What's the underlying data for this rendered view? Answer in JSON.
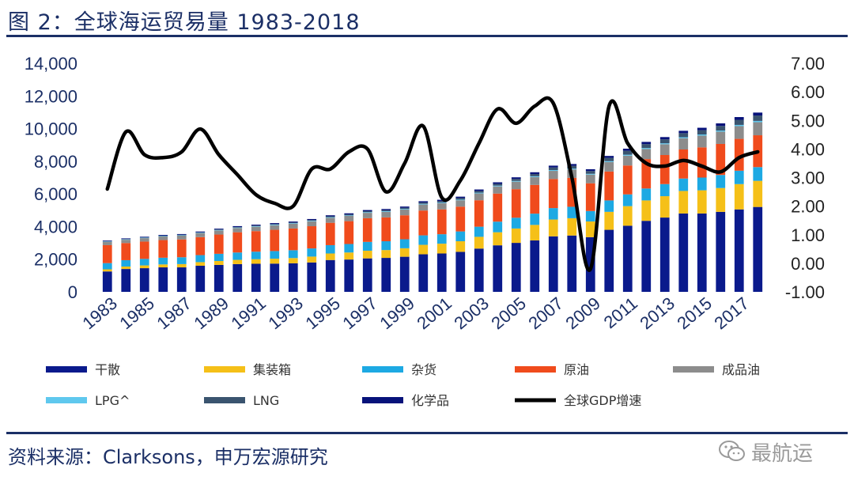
{
  "title": "图 2：全球海运贸易量 1983-2018",
  "source": "资料来源：Clarksons，申万宏源研究",
  "watermark": {
    "icon": "wechat-icon",
    "text": "最航运"
  },
  "chart_data": {
    "type": "bar",
    "stacked": true,
    "years": [
      1983,
      1984,
      1985,
      1986,
      1987,
      1988,
      1989,
      1990,
      1991,
      1992,
      1993,
      1994,
      1995,
      1996,
      1997,
      1998,
      1999,
      2000,
      2001,
      2002,
      2003,
      2004,
      2005,
      2006,
      2007,
      2008,
      2009,
      2010,
      2011,
      2012,
      2013,
      2014,
      2015,
      2016,
      2017,
      2018
    ],
    "x_tick_labels": [
      "1983",
      "1985",
      "1987",
      "1989",
      "1991",
      "1993",
      "1995",
      "1997",
      "1999",
      "2001",
      "2003",
      "2005",
      "2007",
      "2009",
      "2011",
      "2013",
      "2015",
      "2017"
    ],
    "ylim": [
      0,
      14000
    ],
    "y_ticks": [
      "0",
      "2,000",
      "4,000",
      "6,000",
      "8,000",
      "10,000",
      "12,000",
      "14,000"
    ],
    "y2lim": [
      -1,
      7
    ],
    "y2_ticks": [
      "-1.00",
      "0.00",
      "1.00",
      "2.00",
      "3.00",
      "4.00",
      "5.00",
      "6.00",
      "7.00"
    ],
    "series": [
      {
        "name": "干散",
        "color": "#0a1a8c",
        "values": [
          1250,
          1400,
          1450,
          1500,
          1500,
          1600,
          1650,
          1700,
          1720,
          1730,
          1750,
          1800,
          1950,
          1980,
          2050,
          2080,
          2150,
          2300,
          2350,
          2450,
          2650,
          2850,
          3000,
          3150,
          3400,
          3450,
          3350,
          3800,
          4050,
          4350,
          4550,
          4800,
          4800,
          4900,
          5050,
          5200
        ]
      },
      {
        "name": "集装箱",
        "color": "#f5c018",
        "values": [
          130,
          150,
          170,
          180,
          200,
          220,
          240,
          260,
          280,
          300,
          320,
          360,
          400,
          430,
          470,
          480,
          520,
          580,
          600,
          650,
          720,
          800,
          880,
          950,
          1030,
          1060,
          960,
          1100,
          1200,
          1250,
          1310,
          1380,
          1420,
          1460,
          1550,
          1600
        ]
      },
      {
        "name": "杂货",
        "color": "#1da9e3",
        "values": [
          380,
          390,
          400,
          410,
          420,
          430,
          440,
          450,
          460,
          470,
          480,
          500,
          510,
          520,
          540,
          540,
          550,
          580,
          580,
          600,
          620,
          650,
          660,
          690,
          700,
          700,
          640,
          700,
          720,
          730,
          740,
          760,
          780,
          800,
          820,
          840
        ]
      },
      {
        "name": "原油",
        "color": "#f04b1c",
        "values": [
          1100,
          1050,
          1060,
          1080,
          1090,
          1100,
          1180,
          1240,
          1260,
          1300,
          1330,
          1360,
          1370,
          1400,
          1450,
          1460,
          1470,
          1520,
          1520,
          1520,
          1620,
          1720,
          1750,
          1760,
          1780,
          1770,
          1700,
          1770,
          1770,
          1800,
          1780,
          1780,
          1850,
          1900,
          1950,
          1950
        ]
      },
      {
        "name": "成品油",
        "color": "#8c8c8c",
        "values": [
          200,
          200,
          210,
          220,
          230,
          240,
          250,
          260,
          270,
          280,
          290,
          300,
          310,
          320,
          330,
          340,
          350,
          370,
          380,
          390,
          420,
          440,
          460,
          480,
          500,
          520,
          530,
          580,
          600,
          620,
          660,
          690,
          720,
          750,
          780,
          800
        ]
      },
      {
        "name": "LPG^",
        "color": "#5fc8ee",
        "values": [
          25,
          25,
          25,
          30,
          30,
          30,
          30,
          30,
          35,
          35,
          35,
          35,
          35,
          35,
          40,
          40,
          40,
          40,
          40,
          40,
          45,
          45,
          45,
          50,
          50,
          50,
          50,
          55,
          60,
          60,
          60,
          60,
          70,
          70,
          75,
          80
        ]
      },
      {
        "name": "LNG",
        "color": "#3a546f",
        "values": [
          15,
          20,
          20,
          20,
          25,
          25,
          30,
          30,
          35,
          40,
          40,
          45,
          50,
          55,
          60,
          65,
          70,
          80,
          90,
          95,
          105,
          110,
          120,
          140,
          160,
          170,
          170,
          200,
          240,
          240,
          240,
          250,
          260,
          280,
          310,
          330
        ]
      },
      {
        "name": "化学品",
        "color": "#07127a",
        "values": [
          40,
          40,
          40,
          45,
          45,
          50,
          50,
          55,
          55,
          55,
          60,
          60,
          65,
          70,
          70,
          70,
          75,
          80,
          80,
          85,
          90,
          95,
          100,
          105,
          110,
          110,
          110,
          120,
          130,
          135,
          140,
          145,
          150,
          160,
          170,
          180
        ]
      }
    ],
    "line": {
      "name": "全球GDP增速",
      "color": "#000000",
      "values": [
        2.6,
        4.6,
        3.8,
        3.7,
        3.9,
        4.7,
        3.8,
        3.1,
        2.4,
        2.1,
        2.0,
        3.3,
        3.3,
        3.9,
        4.0,
        2.5,
        3.5,
        4.8,
        2.3,
        2.9,
        4.2,
        5.4,
        4.9,
        5.5,
        5.6,
        3.0,
        -0.2,
        5.5,
        4.2,
        3.5,
        3.4,
        3.6,
        3.4,
        3.2,
        3.7,
        3.9
      ]
    },
    "legend": [
      {
        "key": "干散",
        "label": "干散"
      },
      {
        "key": "集装箱",
        "label": "集装箱"
      },
      {
        "key": "杂货",
        "label": "杂货"
      },
      {
        "key": "原油",
        "label": "原油"
      },
      {
        "key": "成品油",
        "label": "成品油"
      },
      {
        "key": "LPG^",
        "label": "LPG^"
      },
      {
        "key": "LNG",
        "label": "LNG"
      },
      {
        "key": "化学品",
        "label": "化学品"
      },
      {
        "key": "line",
        "label": "全球GDP增速"
      }
    ]
  }
}
